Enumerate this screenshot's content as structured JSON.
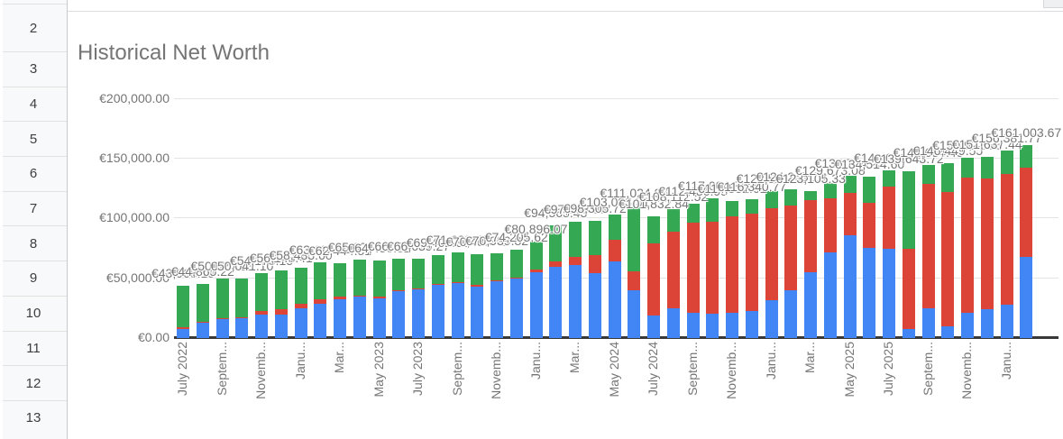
{
  "spreadsheet": {
    "row_numbers": [
      "2",
      "3",
      "4",
      "5",
      "6",
      "7",
      "8",
      "9",
      "10",
      "11",
      "12",
      "13"
    ]
  },
  "chart_data": {
    "type": "bar",
    "stacked": true,
    "title": "Historical Net Worth",
    "legend": "none",
    "grid": true,
    "ylim": [
      0,
      200000
    ],
    "y_tick_labels": [
      "€200,000.00",
      "€150,000.00",
      "€100,000.00",
      "€50,000.00",
      "€0.00"
    ],
    "x_tick_labels": [
      "July 2022",
      "Septem...",
      "Novemb...",
      "Janu...",
      "Mar...",
      "May 2023",
      "July 2023",
      "Septem...",
      "Novemb...",
      "Janu...",
      "Mar...",
      "May 2024",
      "July 2024",
      "Septem...",
      "Novemb...",
      "Janu...",
      "Mar...",
      "May 2025",
      "July 2025",
      "Septem...",
      "Novemb...",
      "Janu..."
    ],
    "x_tick_bar_indices": [
      0,
      2,
      4,
      6,
      8,
      10,
      12,
      14,
      16,
      18,
      20,
      22,
      24,
      26,
      28,
      30,
      32,
      34,
      36,
      38,
      40,
      42
    ],
    "categories": [
      "Jul 2022",
      "Aug 2022",
      "Sep 2022",
      "Oct 2022",
      "Nov 2022",
      "Dec 2022",
      "Jan 2023",
      "Feb 2023",
      "Mar 2023",
      "Apr 2023",
      "May 2023",
      "Jun 2023",
      "Jul 2023",
      "Aug 2023",
      "Sep 2023",
      "Oct 2023",
      "Nov 2023",
      "Dec 2023",
      "Jan 2024",
      "Feb 2024",
      "Mar 2024",
      "Apr 2024",
      "May 2024",
      "Jun 2024",
      "Jul 2024",
      "Aug 2024",
      "Sep 2024",
      "Oct 2024",
      "Nov 2024",
      "Dec 2024",
      "Jan 2025",
      "Feb 2025",
      "Mar 2025",
      "Apr 2025",
      "May 2025",
      "Jun 2025",
      "Jul 2025",
      "Aug 2025",
      "Sep 2025",
      "Oct 2025",
      "Nov 2025",
      "Dec 2025",
      "Jan 2026",
      "Feb 2026"
    ],
    "series": [
      {
        "name": "blue-series",
        "color": "#4285f4",
        "values": [
          7600,
          13000,
          16200,
          16800,
          19600,
          19400,
          24600,
          29000,
          32700,
          35200,
          33500,
          39200,
          41000,
          44800,
          46000,
          43000,
          48000,
          49800,
          54800,
          59900,
          60800,
          54000,
          64100,
          39700,
          18900,
          24600,
          20900,
          20400,
          21400,
          22900,
          31400,
          40200,
          55000,
          71600,
          85700,
          75700,
          74800,
          7500,
          24600,
          10000,
          21100,
          24300,
          27900,
          67500
        ]
      },
      {
        "name": "red-series",
        "color": "#db4437",
        "values": [
          1500,
          600,
          600,
          700,
          2800,
          5000,
          4000,
          3200,
          1800,
          500,
          1000,
          500,
          500,
          500,
          500,
          1800,
          500,
          500,
          2300,
          4500,
          7100,
          15400,
          18300,
          15800,
          60300,
          64100,
          75400,
          76600,
          80600,
          81300,
          77300,
          70300,
          60400,
          45300,
          35700,
          37400,
          51500,
          67300,
          104200,
          111800,
          113300,
          109100,
          109400,
          75200
        ]
      },
      {
        "name": "green-series",
        "color": "#34a853",
        "values": [
          34868.15,
          31265.22,
          33224.93,
          32541.1,
          31775.15,
          31748.41,
          29833.6,
          30912.77,
          27944.51,
          29901.34,
          29936.82,
          26414.95,
          25139.27,
          24102.68,
          25138.7,
          25638.45,
          22439.82,
          23905.62,
          23796.07,
          30165.43,
          29103.88,
          28905.72,
          20683.51,
          55524.96,
          22632.84,
          19412.52,
          16136.95,
          20004.56,
          12532.61,
          12140.77,
          13817.9,
          13765.19,
          7705.33,
          12773.08,
          14304.25,
          21414.6,
          13741.88,
          64843.72,
          15834.49,
          24649.55,
          16521.36,
          18237.44,
          19081.77,
          18303.67
        ]
      }
    ],
    "bar_total_labels": [
      "€43,968.15",
      "€44,865.22",
      "€50,024.93",
      "€50,041.10",
      "€54,175.15",
      "€56,148.41",
      "€58,433.60",
      "€63,112.77",
      "€62,444.51",
      "€65,601.34",
      "€64,436.82",
      "€66,114.95",
      "€66,639.27",
      "€69,402.68",
      "€71,638.70",
      "€70,438.45",
      "€70,939.82",
      "€74,205.62",
      "€80,896.07",
      "€94,565.43",
      "€97,003.88",
      "€98,305.72",
      "€103,083.51",
      "€111,024.96",
      "€101,832.84",
      "€108,112.52",
      "€112,436.95",
      "€117,004.56",
      "€114,532.61",
      "€116,340.77",
      "€122,517.90",
      "€124,265.19",
      "€123,105.33",
      "€129,673.08",
      "€135,704.25",
      "€134,514.60",
      "€140,041.88",
      "€139,643.72",
      "€144,634.49",
      "€146,449.55",
      "€150,921.36",
      "€151,637.44",
      "€156,381.77",
      "€161,003.67"
    ]
  }
}
